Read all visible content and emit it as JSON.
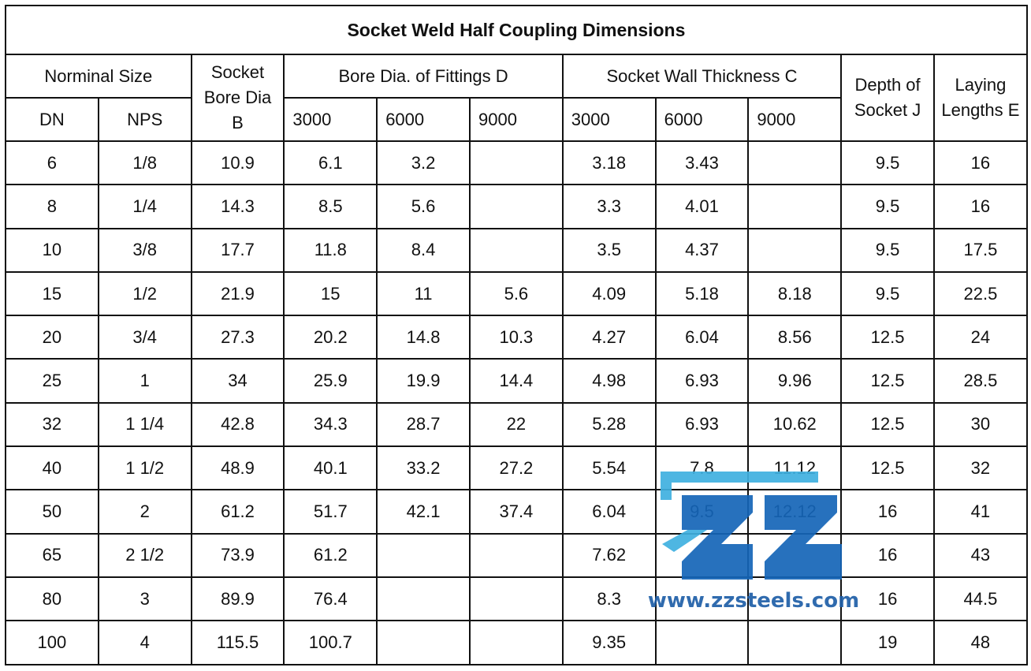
{
  "title": "Socket Weld Half Coupling Dimensions",
  "header": {
    "nominal_size": "Norminal Size",
    "socket_bore": "Socket\nBore Dia\nB",
    "bore_dia": "Bore Dia. of Fittings D",
    "wall_thickness": "Socket Wall Thickness C",
    "depth": "Depth of\nSocket J",
    "laying": "Laying\nLengths E",
    "dn": "DN",
    "nps": "NPS",
    "bore_classes": [
      "3000",
      "6000",
      "9000"
    ],
    "wall_classes": [
      "3000",
      "6000",
      "9000"
    ]
  },
  "table": {
    "rows": [
      [
        "6",
        "1/8",
        "10.9",
        "6.1",
        "3.2",
        null,
        "3.18",
        "3.43",
        null,
        "9.5",
        "16"
      ],
      [
        "8",
        "1/4",
        "14.3",
        "8.5",
        "5.6",
        null,
        "3.3",
        "4.01",
        null,
        "9.5",
        "16"
      ],
      [
        "10",
        "3/8",
        "17.7",
        "11.8",
        "8.4",
        null,
        "3.5",
        "4.37",
        null,
        "9.5",
        "17.5"
      ],
      [
        "15",
        "1/2",
        "21.9",
        "15",
        "11",
        "5.6",
        "4.09",
        "5.18",
        "8.18",
        "9.5",
        "22.5"
      ],
      [
        "20",
        "3/4",
        "27.3",
        "20.2",
        "14.8",
        "10.3",
        "4.27",
        "6.04",
        "8.56",
        "12.5",
        "24"
      ],
      [
        "25",
        "1",
        "34",
        "25.9",
        "19.9",
        "14.4",
        "4.98",
        "6.93",
        "9.96",
        "12.5",
        "28.5"
      ],
      [
        "32",
        "1 1/4",
        "42.8",
        "34.3",
        "28.7",
        "22",
        "5.28",
        "6.93",
        "10.62",
        "12.5",
        "30"
      ],
      [
        "40",
        "1 1/2",
        "48.9",
        "40.1",
        "33.2",
        "27.2",
        "5.54",
        "7.8",
        "11.12",
        "12.5",
        "32"
      ],
      [
        "50",
        "2",
        "61.2",
        "51.7",
        "42.1",
        "37.4",
        "6.04",
        "9.5",
        "12.12",
        "16",
        "41"
      ],
      [
        "65",
        "2 1/2",
        "73.9",
        "61.2",
        null,
        null,
        "7.62",
        null,
        null,
        "16",
        "43"
      ],
      [
        "80",
        "3",
        "89.9",
        "76.4",
        null,
        null,
        "8.3",
        null,
        null,
        "16",
        "44.5"
      ],
      [
        "100",
        "4",
        "115.5",
        "100.7",
        null,
        null,
        "9.35",
        null,
        null,
        "19",
        "48"
      ]
    ]
  },
  "watermark": "www.zzsteels.com"
}
